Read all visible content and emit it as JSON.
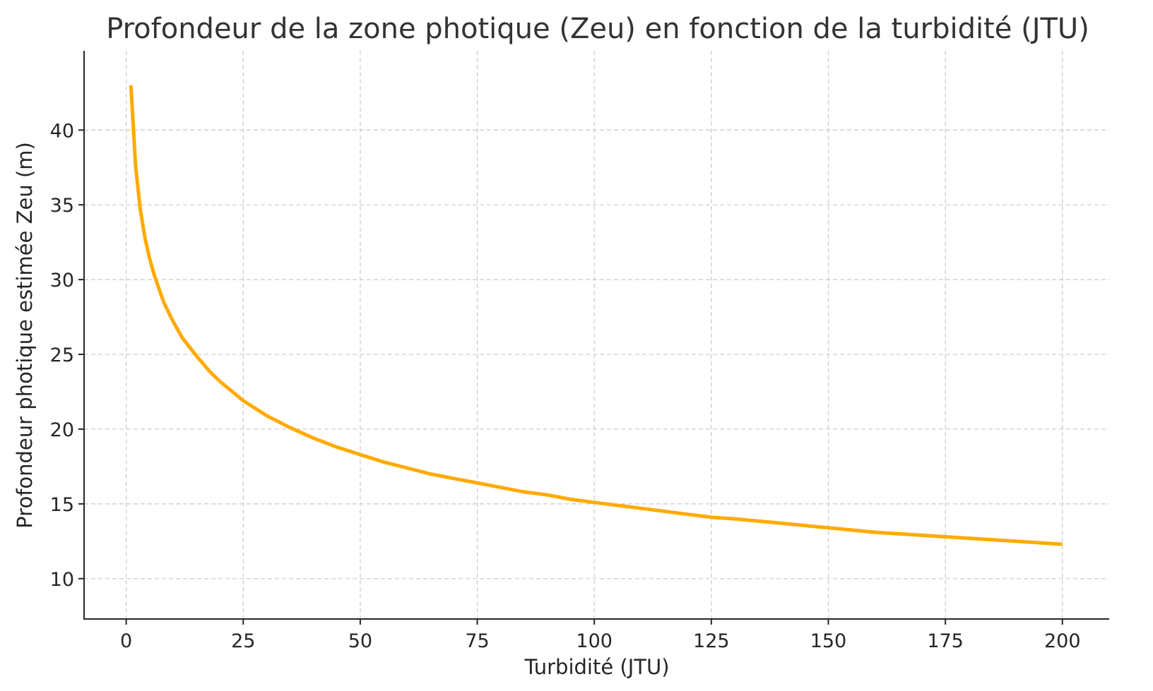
{
  "chart_data": {
    "type": "line",
    "title": "Profondeur de la zone photique (Zeu) en fonction de la turbidité (JTU)",
    "xlabel": "Turbidité (JTU)",
    "ylabel": "Profondeur photique estimée Zeu (m)",
    "xlim": [
      -9,
      210
    ],
    "ylim": [
      7.3,
      45.3
    ],
    "xticks": [
      0,
      25,
      50,
      75,
      100,
      125,
      150,
      175,
      200
    ],
    "yticks": [
      10,
      15,
      20,
      25,
      30,
      35,
      40
    ],
    "grid": true,
    "series": [
      {
        "color": "#FFAA00",
        "x": [
          1,
          2,
          3,
          4,
          5,
          6,
          8,
          10,
          12,
          15,
          18,
          20,
          25,
          30,
          35,
          40,
          45,
          50,
          55,
          60,
          65,
          70,
          75,
          80,
          85,
          90,
          95,
          100,
          110,
          120,
          125,
          130,
          140,
          150,
          160,
          170,
          175,
          180,
          190,
          200
        ],
        "y": [
          43.0,
          37.6,
          34.7,
          32.8,
          31.4,
          30.3,
          28.5,
          27.2,
          26.1,
          24.9,
          23.8,
          23.2,
          21.9,
          20.9,
          20.1,
          19.4,
          18.8,
          18.3,
          17.8,
          17.4,
          17.0,
          16.7,
          16.4,
          16.1,
          15.8,
          15.6,
          15.3,
          15.1,
          14.7,
          14.3,
          14.1,
          14.0,
          13.7,
          13.4,
          13.1,
          12.9,
          12.8,
          12.7,
          12.5,
          12.3
        ]
      }
    ]
  }
}
